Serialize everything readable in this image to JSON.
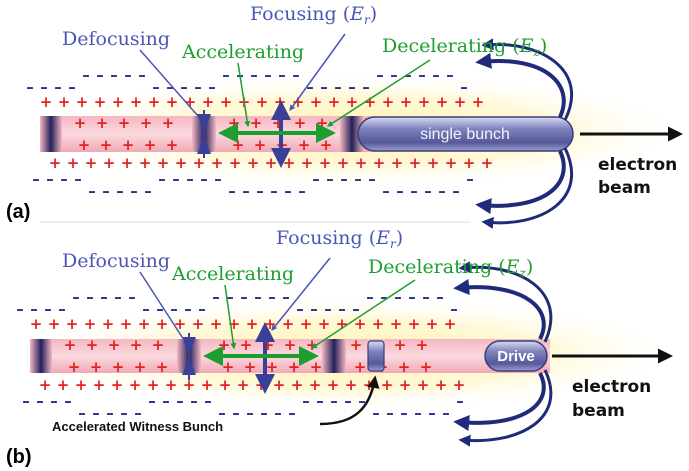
{
  "panel_a": {
    "tag": "(a)",
    "focusing_label": "Focusing (",
    "focusing_sym": "E",
    "focusing_sub": "r",
    "focusing_close": ")",
    "defocusing_label": "Defocusing",
    "accelerating_label": "Accelerating",
    "decelerating_label": "Decelerating (",
    "decelerating_sym": "E",
    "decelerating_sub": "z",
    "decelerating_close": ")",
    "bunch_label": "single bunch",
    "beam_line1": "electron",
    "beam_line2": "beam"
  },
  "panel_b": {
    "tag": "(b)",
    "focusing_label": "Focusing (",
    "focusing_sym": "E",
    "focusing_sub": "r",
    "focusing_close": ")",
    "defocusing_label": "Defocusing",
    "accelerating_label": "Accelerating",
    "decelerating_label": "Decelerating (",
    "decelerating_sym": "E",
    "decelerating_sub": "z",
    "decelerating_close": ")",
    "drive_label": "Drive",
    "witness_label": "Accelerated Witness Bunch",
    "beam_line1": "electron",
    "beam_line2": "beam"
  },
  "colors": {
    "blue_label": "#4a55b8",
    "green_label": "#1e9e2e",
    "plus_charge": "#e32222",
    "minus_charge": "#2a2f8a",
    "beam_pink": "#f8c7cf",
    "glow_yellow": "#fff3a6"
  }
}
